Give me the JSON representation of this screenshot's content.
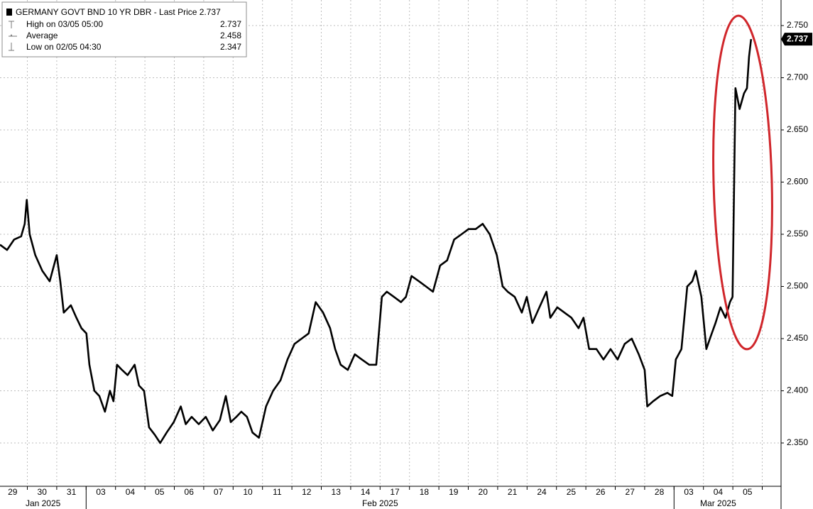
{
  "chart_data": {
    "type": "line",
    "legend": {
      "title": "GERMANY GOVT BND 10 YR DBR - Last Price",
      "last_value": 2.737,
      "stats": [
        {
          "label": "High on 03/05 05:00",
          "value": 2.737
        },
        {
          "label": "Average",
          "value": 2.458
        },
        {
          "label": "Low on 02/05 04:30",
          "value": 2.347
        }
      ]
    },
    "xlim": [
      -0.43,
      26.14
    ],
    "xticks": [
      {
        "value": 0,
        "label": "29"
      },
      {
        "value": 1,
        "label": "30"
      },
      {
        "value": 2,
        "label": "31"
      },
      {
        "value": 3,
        "label": "03"
      },
      {
        "value": 4,
        "label": "04"
      },
      {
        "value": 5,
        "label": "05"
      },
      {
        "value": 6,
        "label": "06"
      },
      {
        "value": 7,
        "label": "07"
      },
      {
        "value": 8,
        "label": "10"
      },
      {
        "value": 9,
        "label": "11"
      },
      {
        "value": 10,
        "label": "12"
      },
      {
        "value": 11,
        "label": "13"
      },
      {
        "value": 12,
        "label": "14"
      },
      {
        "value": 13,
        "label": "17"
      },
      {
        "value": 14,
        "label": "18"
      },
      {
        "value": 15,
        "label": "19"
      },
      {
        "value": 16,
        "label": "20"
      },
      {
        "value": 17,
        "label": "21"
      },
      {
        "value": 18,
        "label": "24"
      },
      {
        "value": 19,
        "label": "25"
      },
      {
        "value": 20,
        "label": "26"
      },
      {
        "value": 21,
        "label": "27"
      },
      {
        "value": 22,
        "label": "28"
      },
      {
        "value": 23,
        "label": "03"
      },
      {
        "value": 24,
        "label": "04"
      },
      {
        "value": 25,
        "label": "05"
      }
    ],
    "months": [
      {
        "label": "Jan 2025",
        "start": -0.5,
        "end": 2.5
      },
      {
        "label": "Feb 2025",
        "start": 2.5,
        "end": 22.5
      },
      {
        "label": "Mar 2025",
        "start": 22.5,
        "end": 25.5
      }
    ],
    "ylim": [
      2.3085,
      2.7745
    ],
    "yticks": [
      {
        "value": 2.35,
        "label": "2.350"
      },
      {
        "value": 2.4,
        "label": "2.400"
      },
      {
        "value": 2.45,
        "label": "2.450"
      },
      {
        "value": 2.5,
        "label": "2.500"
      },
      {
        "value": 2.55,
        "label": "2.550"
      },
      {
        "value": 2.6,
        "label": "2.600"
      },
      {
        "value": 2.65,
        "label": "2.650"
      },
      {
        "value": 2.7,
        "label": "2.700"
      },
      {
        "value": 2.75,
        "label": "2.750"
      }
    ],
    "grid": true,
    "x": [
      -0.43,
      -0.19,
      0.05,
      0.29,
      0.41,
      0.48,
      0.58,
      0.77,
      1.01,
      1.26,
      1.5,
      1.62,
      1.74,
      1.98,
      2.17,
      2.34,
      2.51,
      2.61,
      2.78,
      2.95,
      3.14,
      3.31,
      3.43,
      3.55,
      3.72,
      3.91,
      4.15,
      4.3,
      4.47,
      4.64,
      4.83,
      5.02,
      5.24,
      5.48,
      5.72,
      5.89,
      6.09,
      6.33,
      6.57,
      6.81,
      7.05,
      7.25,
      7.42,
      7.61,
      7.78,
      7.97,
      8.16,
      8.38,
      8.62,
      8.86,
      9.11,
      9.35,
      9.59,
      9.83,
      10.07,
      10.31,
      10.56,
      10.8,
      10.97,
      11.16,
      11.4,
      11.64,
      11.88,
      12.13,
      12.37,
      12.56,
      12.73,
      12.97,
      13.21,
      13.38,
      13.57,
      13.82,
      14.06,
      14.3,
      14.54,
      14.78,
      15.02,
      15.27,
      15.51,
      15.75,
      15.99,
      16.23,
      16.47,
      16.67,
      16.84,
      17.08,
      17.32,
      17.49,
      17.68,
      17.92,
      18.16,
      18.29,
      18.53,
      18.77,
      19.01,
      19.25,
      19.42,
      19.61,
      19.86,
      20.1,
      20.34,
      20.58,
      20.82,
      21.06,
      21.3,
      21.5,
      21.59,
      21.79,
      22.03,
      22.27,
      22.44,
      22.56,
      22.75,
      22.95,
      23.12,
      23.24,
      23.43,
      23.6,
      23.72,
      23.91,
      24.08,
      24.25,
      24.4,
      24.49,
      24.59,
      24.73,
      24.88,
      24.98,
      25.05,
      25.12
    ],
    "series": [
      {
        "name": "GERMANY GOVT BND 10 YR DBR",
        "color": "#000000",
        "values": [
          2.54,
          2.535,
          2.545,
          2.548,
          2.56,
          2.583,
          2.55,
          2.53,
          2.515,
          2.505,
          2.53,
          2.505,
          2.475,
          2.482,
          2.47,
          2.46,
          2.455,
          2.425,
          2.4,
          2.395,
          2.38,
          2.4,
          2.39,
          2.425,
          2.42,
          2.415,
          2.425,
          2.405,
          2.4,
          2.365,
          2.358,
          2.35,
          2.36,
          2.37,
          2.385,
          2.368,
          2.375,
          2.368,
          2.375,
          2.362,
          2.372,
          2.395,
          2.37,
          2.375,
          2.38,
          2.375,
          2.36,
          2.355,
          2.385,
          2.4,
          2.41,
          2.43,
          2.445,
          2.45,
          2.455,
          2.485,
          2.475,
          2.46,
          2.44,
          2.425,
          2.42,
          2.435,
          2.43,
          2.425,
          2.425,
          2.49,
          2.495,
          2.49,
          2.485,
          2.49,
          2.51,
          2.505,
          2.5,
          2.495,
          2.52,
          2.525,
          2.545,
          2.55,
          2.555,
          2.555,
          2.56,
          2.55,
          2.53,
          2.5,
          2.495,
          2.49,
          2.475,
          2.49,
          2.465,
          2.48,
          2.495,
          2.47,
          2.48,
          2.475,
          2.47,
          2.46,
          2.47,
          2.44,
          2.44,
          2.43,
          2.44,
          2.43,
          2.445,
          2.45,
          2.435,
          2.42,
          2.385,
          2.39,
          2.395,
          2.398,
          2.395,
          2.43,
          2.44,
          2.5,
          2.505,
          2.515,
          2.49,
          2.44,
          2.45,
          2.465,
          2.48,
          2.47,
          2.485,
          2.49,
          2.69,
          2.67,
          2.685,
          2.69,
          2.72,
          2.737
        ]
      }
    ]
  }
}
